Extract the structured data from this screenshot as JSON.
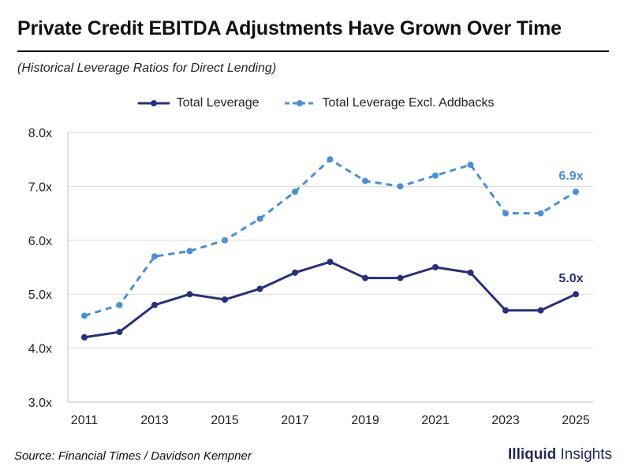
{
  "header": {
    "title": "Private Credit EBITDA Adjustments Have Grown Over Time",
    "subtitle": "(Historical Leverage Ratios for Direct Lending)"
  },
  "footer": {
    "source": "Source: Financial Times / Davidson Kempner",
    "brand_bold": "Illiquid",
    "brand_regular": "Insights"
  },
  "colors": {
    "total_leverage": "#27307a",
    "excl_addbacks": "#4a8fd6",
    "grid": "#d9d9d9",
    "axis_text": "#222222"
  },
  "chart_data": {
    "type": "line",
    "title": "Private Credit EBITDA Adjustments Have Grown Over Time",
    "subtitle": "(Historical Leverage Ratios for Direct Lending)",
    "x": [
      2011,
      2012,
      2013,
      2014,
      2015,
      2016,
      2017,
      2018,
      2019,
      2020,
      2021,
      2022,
      2023,
      2024,
      2025
    ],
    "x_tick_labels": [
      "2011",
      "2013",
      "2015",
      "2017",
      "2019",
      "2021",
      "2023",
      "2025"
    ],
    "x_tick_values": [
      2011,
      2013,
      2015,
      2017,
      2019,
      2021,
      2023,
      2025
    ],
    "y_tick_labels": [
      "3.0x",
      "4.0x",
      "5.0x",
      "6.0x",
      "7.0x",
      "8.0x"
    ],
    "y_tick_values": [
      3,
      4,
      5,
      6,
      7,
      8
    ],
    "ylim": [
      3,
      8
    ],
    "grid": true,
    "legend_position": "top-center",
    "series": [
      {
        "name": "Total Leverage",
        "style": "solid",
        "values": [
          4.2,
          4.3,
          4.8,
          5.0,
          4.9,
          5.1,
          5.4,
          5.6,
          5.3,
          5.3,
          5.5,
          5.4,
          4.7,
          4.7,
          5.0
        ],
        "end_label": "5.0x"
      },
      {
        "name": "Total Leverage Excl. Addbacks",
        "style": "dashed",
        "values": [
          4.6,
          4.8,
          5.7,
          5.8,
          6.0,
          6.4,
          6.9,
          7.5,
          7.1,
          7.0,
          7.2,
          7.4,
          6.5,
          6.5,
          6.9
        ],
        "end_label": "6.9x"
      }
    ]
  }
}
